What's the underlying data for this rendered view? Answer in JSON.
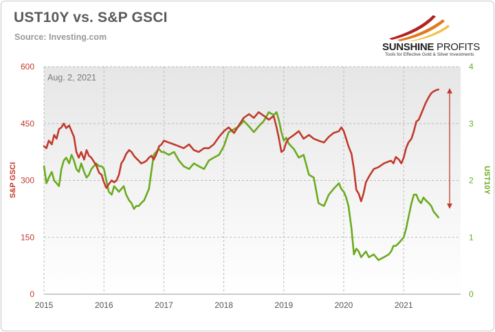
{
  "header": {
    "title": "UST10Y vs. S&P GSCI",
    "source": "Source: Investing.com"
  },
  "logo": {
    "name_bold": "SUNSHINE",
    "name_light": " PROFITS",
    "tagline": "Tools for Effective Gold & Silver Investments",
    "colors": [
      "#b22222",
      "#e07b1f",
      "#f2c14e"
    ]
  },
  "chart_data": {
    "type": "line",
    "annotation": "Aug. 2, 2021",
    "x_ticks": [
      "2015",
      "2016",
      "2017",
      "2018",
      "2019",
      "2020",
      "2021"
    ],
    "xlim": [
      2015.0,
      2021.95
    ],
    "grid": true,
    "y_left": {
      "label": "S&P GSCI",
      "lim": [
        0,
        600
      ],
      "ticks": [
        "0",
        "150",
        "300",
        "450",
        "600"
      ],
      "color": "#c0392b"
    },
    "y_right": {
      "label": "UST10Y",
      "lim": [
        0,
        4
      ],
      "ticks": [
        "0",
        "1",
        "2",
        "3",
        "4"
      ],
      "color": "#6aaa1e"
    },
    "series": [
      {
        "name": "S&P GSCI",
        "axis": "left",
        "color": "#c0392b",
        "x": [
          2015.0,
          2015.04,
          2015.08,
          2015.13,
          2015.17,
          2015.21,
          2015.25,
          2015.29,
          2015.33,
          2015.37,
          2015.42,
          2015.46,
          2015.5,
          2015.54,
          2015.58,
          2015.62,
          2015.67,
          2015.71,
          2015.75,
          2015.79,
          2015.83,
          2015.87,
          2015.92,
          2015.96,
          2016.0,
          2016.04,
          2016.08,
          2016.13,
          2016.17,
          2016.21,
          2016.25,
          2016.29,
          2016.33,
          2016.37,
          2016.42,
          2016.46,
          2016.5,
          2016.54,
          2016.58,
          2016.62,
          2016.67,
          2016.71,
          2016.75,
          2016.79,
          2016.83,
          2016.87,
          2016.92,
          2016.96,
          2017.0,
          2017.08,
          2017.17,
          2017.25,
          2017.33,
          2017.42,
          2017.5,
          2017.58,
          2017.67,
          2017.75,
          2017.83,
          2017.92,
          2018.0,
          2018.08,
          2018.17,
          2018.25,
          2018.33,
          2018.42,
          2018.5,
          2018.58,
          2018.67,
          2018.75,
          2018.83,
          2018.88,
          2018.92,
          2018.96,
          2019.0,
          2019.04,
          2019.08,
          2019.17,
          2019.25,
          2019.33,
          2019.42,
          2019.5,
          2019.58,
          2019.67,
          2019.75,
          2019.83,
          2019.92,
          2019.96,
          2020.0,
          2020.04,
          2020.08,
          2020.13,
          2020.17,
          2020.21,
          2020.25,
          2020.29,
          2020.33,
          2020.37,
          2020.42,
          2020.5,
          2020.58,
          2020.67,
          2020.75,
          2020.79,
          2020.83,
          2020.87,
          2020.92,
          2020.96,
          2021.0,
          2021.04,
          2021.08,
          2021.13,
          2021.17,
          2021.21,
          2021.25,
          2021.29,
          2021.33,
          2021.37,
          2021.42,
          2021.46,
          2021.5,
          2021.54,
          2021.58
        ],
        "values": [
          390,
          385,
          405,
          395,
          420,
          410,
          435,
          440,
          450,
          438,
          445,
          430,
          415,
          375,
          360,
          375,
          355,
          380,
          365,
          360,
          350,
          340,
          320,
          315,
          295,
          280,
          290,
          300,
          295,
          300,
          315,
          345,
          355,
          370,
          380,
          375,
          365,
          358,
          352,
          345,
          348,
          352,
          360,
          365,
          355,
          368,
          390,
          395,
          405,
          400,
          395,
          390,
          385,
          395,
          380,
          375,
          385,
          385,
          395,
          415,
          430,
          440,
          425,
          445,
          465,
          475,
          465,
          480,
          470,
          460,
          470,
          440,
          410,
          375,
          380,
          400,
          410,
          420,
          430,
          410,
          420,
          410,
          405,
          400,
          415,
          425,
          430,
          440,
          430,
          410,
          390,
          370,
          330,
          275,
          265,
          245,
          265,
          295,
          310,
          330,
          335,
          345,
          350,
          352,
          345,
          362,
          355,
          345,
          360,
          385,
          400,
          410,
          430,
          455,
          460,
          475,
          490,
          505,
          520,
          530,
          535,
          538,
          540
        ]
      },
      {
        "name": "UST10Y",
        "axis": "right",
        "color": "#6aaa1e",
        "x": [
          2015.0,
          2015.04,
          2015.08,
          2015.13,
          2015.17,
          2015.21,
          2015.25,
          2015.29,
          2015.33,
          2015.37,
          2015.42,
          2015.46,
          2015.5,
          2015.54,
          2015.58,
          2015.62,
          2015.67,
          2015.71,
          2015.75,
          2015.79,
          2015.83,
          2015.87,
          2015.92,
          2015.96,
          2016.0,
          2016.04,
          2016.08,
          2016.13,
          2016.17,
          2016.21,
          2016.25,
          2016.29,
          2016.33,
          2016.37,
          2016.42,
          2016.46,
          2016.5,
          2016.54,
          2016.58,
          2016.62,
          2016.67,
          2016.71,
          2016.75,
          2016.79,
          2016.83,
          2016.87,
          2016.92,
          2016.96,
          2017.0,
          2017.08,
          2017.17,
          2017.25,
          2017.33,
          2017.42,
          2017.5,
          2017.58,
          2017.67,
          2017.75,
          2017.83,
          2017.92,
          2018.0,
          2018.08,
          2018.17,
          2018.25,
          2018.33,
          2018.42,
          2018.5,
          2018.58,
          2018.67,
          2018.75,
          2018.83,
          2018.88,
          2018.92,
          2018.96,
          2019.0,
          2019.04,
          2019.08,
          2019.17,
          2019.25,
          2019.33,
          2019.42,
          2019.5,
          2019.58,
          2019.67,
          2019.75,
          2019.83,
          2019.92,
          2019.96,
          2020.0,
          2020.04,
          2020.08,
          2020.13,
          2020.17,
          2020.21,
          2020.25,
          2020.29,
          2020.33,
          2020.37,
          2020.42,
          2020.5,
          2020.58,
          2020.67,
          2020.75,
          2020.79,
          2020.83,
          2020.87,
          2020.92,
          2020.96,
          2021.0,
          2021.04,
          2021.08,
          2021.13,
          2021.17,
          2021.21,
          2021.25,
          2021.29,
          2021.33,
          2021.37,
          2021.42,
          2021.46,
          2021.5,
          2021.54,
          2021.58
        ],
        "values": [
          2.25,
          1.95,
          2.05,
          2.15,
          2.0,
          1.95,
          1.9,
          2.2,
          2.35,
          2.4,
          2.3,
          2.45,
          2.35,
          2.2,
          2.15,
          2.3,
          2.15,
          2.05,
          2.1,
          2.2,
          2.25,
          2.3,
          2.25,
          2.25,
          2.2,
          2.0,
          1.8,
          1.75,
          1.9,
          1.85,
          1.8,
          1.85,
          1.9,
          1.75,
          1.65,
          1.6,
          1.5,
          1.55,
          1.55,
          1.6,
          1.65,
          1.75,
          1.85,
          2.15,
          2.45,
          2.5,
          2.55,
          2.5,
          2.5,
          2.45,
          2.5,
          2.35,
          2.25,
          2.2,
          2.3,
          2.25,
          2.2,
          2.35,
          2.4,
          2.45,
          2.6,
          2.85,
          2.9,
          2.95,
          3.05,
          2.95,
          2.85,
          2.95,
          3.05,
          3.2,
          3.15,
          3.2,
          3.05,
          2.85,
          2.7,
          2.75,
          2.65,
          2.55,
          2.4,
          2.45,
          2.1,
          2.05,
          1.6,
          1.55,
          1.75,
          1.85,
          1.95,
          1.85,
          1.8,
          1.7,
          1.55,
          1.15,
          0.7,
          0.8,
          0.75,
          0.65,
          0.7,
          0.75,
          0.65,
          0.7,
          0.6,
          0.65,
          0.7,
          0.75,
          0.85,
          0.85,
          0.9,
          0.95,
          1.0,
          1.15,
          1.35,
          1.6,
          1.75,
          1.75,
          1.65,
          1.6,
          1.7,
          1.65,
          1.6,
          1.55,
          1.45,
          1.4,
          1.35
        ]
      }
    ]
  }
}
